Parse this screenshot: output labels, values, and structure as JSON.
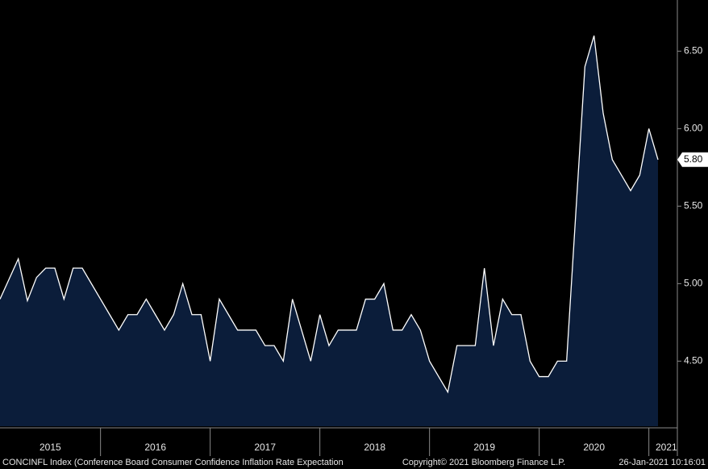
{
  "chart_data": {
    "type": "area",
    "x_axis_labels": [
      "2015",
      "2016",
      "2017",
      "2018",
      "2019",
      "2020",
      "2021"
    ],
    "values": [
      4.9,
      5.03,
      5.16,
      4.89,
      5.04,
      5.1,
      5.1,
      4.9,
      5.1,
      5.1,
      5.0,
      4.9,
      4.8,
      4.7,
      4.8,
      4.8,
      4.9,
      4.8,
      4.7,
      4.8,
      5.0,
      4.8,
      4.8,
      4.5,
      4.9,
      4.8,
      4.7,
      4.7,
      4.7,
      4.6,
      4.6,
      4.5,
      4.9,
      4.7,
      4.5,
      4.8,
      4.6,
      4.7,
      4.7,
      4.7,
      4.9,
      4.9,
      5.0,
      4.7,
      4.7,
      4.8,
      4.7,
      4.5,
      4.4,
      4.3,
      4.6,
      4.6,
      4.6,
      5.1,
      4.6,
      4.9,
      4.8,
      4.8,
      4.5,
      4.4,
      4.4,
      4.5,
      4.5,
      5.45,
      6.4,
      6.6,
      6.1,
      5.8,
      5.7,
      5.6,
      5.7,
      6.0,
      5.8
    ],
    "last_value_label": "5.80",
    "color": "#0b1d3a",
    "line_color": "#ffffff",
    "ylim": [
      4.08,
      6.83
    ],
    "yticks": [
      {
        "value": 4.5,
        "label": "4.50"
      },
      {
        "value": 5.0,
        "label": "5.00"
      },
      {
        "value": 5.5,
        "label": "5.50"
      },
      {
        "value": 6.0,
        "label": "6.00"
      },
      {
        "value": 6.5,
        "label": "6.50"
      }
    ],
    "footer_left": "CONCINFL Index (Conference Board Consumer Confidence Inflation Rate Expectation",
    "footer_center": "Copyright© 2021 Bloomberg Finance L.P.",
    "footer_right": "26-Jan-2021 10:16:01"
  }
}
